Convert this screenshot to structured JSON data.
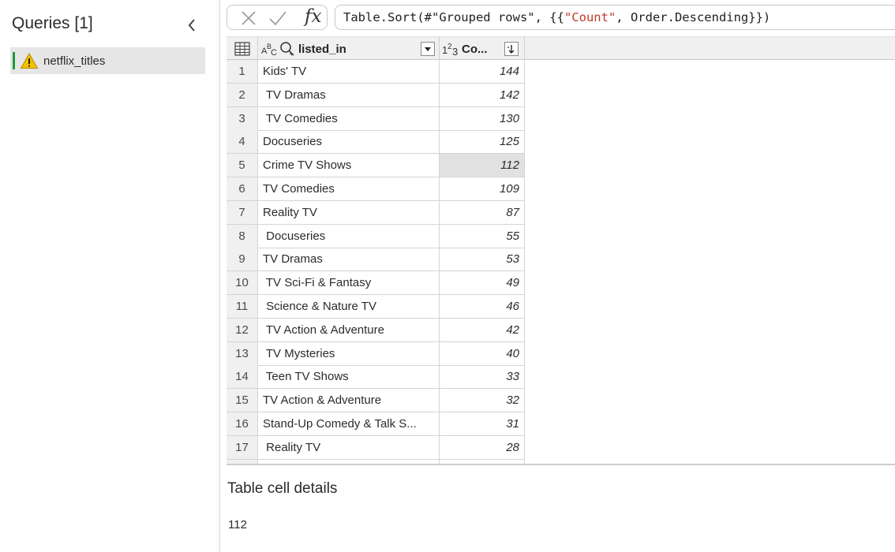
{
  "queries_pane": {
    "title": "Queries [1]",
    "collapse_icon": "chevron-left-icon",
    "items": [
      {
        "label": "netflix_titles",
        "status_icon": "warning-icon",
        "status_color": "#1e9a3a",
        "warning_color": "#f2c200"
      }
    ]
  },
  "formula_bar": {
    "cancel_icon": "close-icon",
    "commit_icon": "check-icon",
    "fx_label": "fx",
    "formula_prefix": "Table.Sort(#\"Grouped rows\", {{",
    "formula_string": "\"Count\"",
    "formula_suffix": ", Order.Descending}})"
  },
  "grid": {
    "columns": [
      {
        "type_label": "ABC",
        "name": "listed_in",
        "icon": "search-key-icon",
        "button_icon": "dropdown-arrow-icon"
      },
      {
        "type_label": "123",
        "name": "Co...",
        "button_icon": "sort-descending-icon"
      }
    ],
    "rows": [
      {
        "n": "1",
        "listed_in": "Kids' TV",
        "count": "144"
      },
      {
        "n": "2",
        "listed_in": " TV Dramas",
        "count": "142"
      },
      {
        "n": "3",
        "listed_in": " TV Comedies",
        "count": "130"
      },
      {
        "n": "4",
        "listed_in": "Docuseries",
        "count": "125"
      },
      {
        "n": "5",
        "listed_in": "Crime TV Shows",
        "count": "112",
        "selected": true
      },
      {
        "n": "6",
        "listed_in": "TV Comedies",
        "count": "109"
      },
      {
        "n": "7",
        "listed_in": "Reality TV",
        "count": "87"
      },
      {
        "n": "8",
        "listed_in": " Docuseries",
        "count": "55"
      },
      {
        "n": "9",
        "listed_in": "TV Dramas",
        "count": "53"
      },
      {
        "n": "10",
        "listed_in": " TV Sci-Fi & Fantasy",
        "count": "49"
      },
      {
        "n": "11",
        "listed_in": " Science & Nature TV",
        "count": "46"
      },
      {
        "n": "12",
        "listed_in": " TV Action & Adventure",
        "count": "42"
      },
      {
        "n": "13",
        "listed_in": " TV Mysteries",
        "count": "40"
      },
      {
        "n": "14",
        "listed_in": " Teen TV Shows",
        "count": "33"
      },
      {
        "n": "15",
        "listed_in": "TV Action & Adventure",
        "count": "32"
      },
      {
        "n": "16",
        "listed_in": "Stand-Up Comedy & Talk S...",
        "count": "31"
      },
      {
        "n": "17",
        "listed_in": " Reality TV",
        "count": "28"
      }
    ]
  },
  "details": {
    "title": "Table cell details",
    "value": "112"
  }
}
